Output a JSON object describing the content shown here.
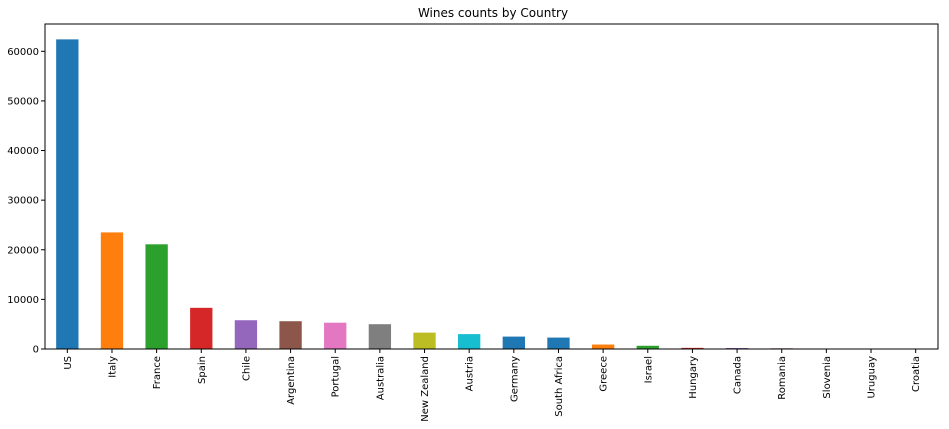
{
  "chart_data": {
    "type": "bar",
    "title": "Wines counts by Country",
    "xlabel": "",
    "ylabel": "",
    "categories": [
      "US",
      "Italy",
      "France",
      "Spain",
      "Chile",
      "Argentina",
      "Portugal",
      "Australia",
      "New Zealand",
      "Austria",
      "Germany",
      "South Africa",
      "Greece",
      "Israel",
      "Hungary",
      "Canada",
      "Romania",
      "Slovenia",
      "Uruguay",
      "Croatia"
    ],
    "values": [
      62400,
      23500,
      21100,
      8300,
      5800,
      5600,
      5300,
      5000,
      3300,
      3000,
      2500,
      2300,
      900,
      650,
      230,
      200,
      140,
      90,
      90,
      85
    ],
    "colors": [
      "#1f77b4",
      "#ff7f0e",
      "#2ca02c",
      "#d62728",
      "#9467bd",
      "#8c564b",
      "#e377c2",
      "#7f7f7f",
      "#bcbd22",
      "#17becf",
      "#1f77b4",
      "#1f77b4",
      "#ff7f0e",
      "#2ca02c",
      "#d62728",
      "#9467bd",
      "#8c564b",
      "#e377c2",
      "#7f7f7f",
      "#bcbd22"
    ],
    "ylim": [
      0,
      65500
    ],
    "yticks": [
      0,
      10000,
      20000,
      30000,
      40000,
      50000,
      60000
    ],
    "grid": false,
    "legend": "none"
  }
}
